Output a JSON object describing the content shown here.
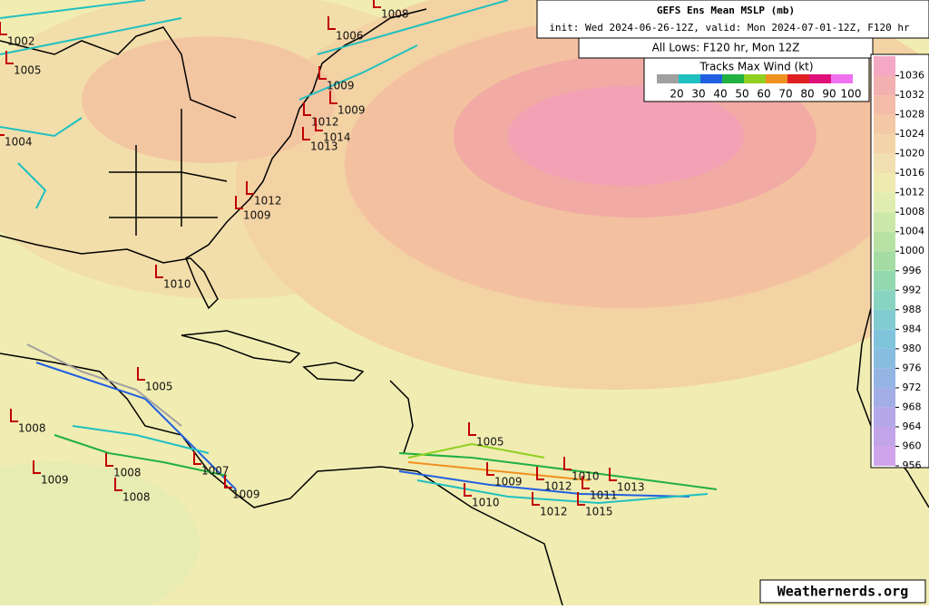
{
  "header": {
    "title": "GEFS Ens Mean MSLP (mb)",
    "subtitle": "init: Wed 2024-06-26-12Z, valid: Mon 2024-07-01-12Z, F120 hr",
    "lows_note": "All Lows: F120 hr, Mon 12Z"
  },
  "track_legend": {
    "title": "Tracks Max Wind (kt)",
    "values": [
      20,
      30,
      40,
      50,
      60,
      70,
      80,
      90,
      100
    ],
    "colors": [
      "#a0a0a0",
      "#20c0c0",
      "#2060e0",
      "#20b040",
      "#90d020",
      "#f09020",
      "#e02020",
      "#e0107a",
      "#f070f0"
    ]
  },
  "colorbar": {
    "ticks": [
      1036,
      1032,
      1028,
      1024,
      1020,
      1016,
      1012,
      1008,
      1004,
      1000,
      996,
      992,
      988,
      984,
      980,
      976,
      972,
      968,
      964,
      960,
      956
    ],
    "colors": [
      "#f4a8c4",
      "#f3b0b0",
      "#f3bca8",
      "#f3c8a4",
      "#f3d4a8",
      "#f2e0b0",
      "#eeeab0",
      "#e0ecb0",
      "#cce8a8",
      "#b8e2a4",
      "#a4dca4",
      "#94d8b0",
      "#88d4c0",
      "#80ccd0",
      "#80c4dc",
      "#88bce0",
      "#94b4e4",
      "#a4aee6",
      "#b4a8e8",
      "#c2a4e8",
      "#d0a4ea"
    ]
  },
  "lows": [
    1002,
    1005,
    1008,
    1006,
    1009,
    1009,
    1012,
    1014,
    1013,
    1004,
    1012,
    1009,
    1010,
    1005,
    1008,
    1009,
    1007,
    1008,
    1008,
    1009,
    1005,
    1009,
    1010,
    1012,
    1010,
    1011,
    1013,
    1012,
    1015
  ],
  "watermark": "Weathernerds.org"
}
